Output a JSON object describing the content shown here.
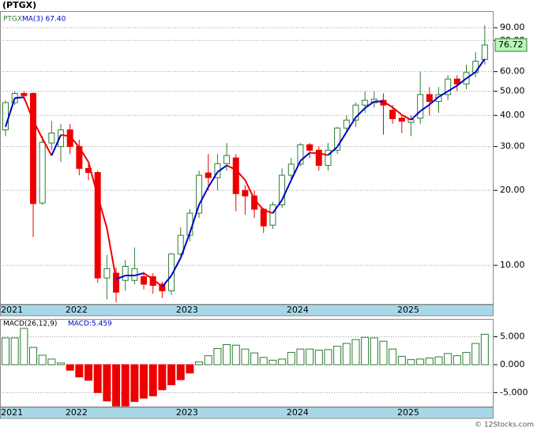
{
  "chart_data": [
    {
      "type": "candlestick",
      "title": "(PTGX)",
      "symbol": "PTGX",
      "ma_legend": "MA(3)  67.40",
      "log_scale": true,
      "grid": true,
      "categories": [
        "2021",
        null,
        null,
        null,
        null,
        null,
        null,
        "2022",
        null,
        null,
        null,
        null,
        null,
        null,
        null,
        null,
        null,
        null,
        null,
        "2023",
        null,
        null,
        null,
        null,
        null,
        null,
        null,
        null,
        null,
        null,
        null,
        "2024",
        null,
        null,
        null,
        null,
        null,
        null,
        null,
        null,
        null,
        null,
        null,
        "2025",
        null,
        null,
        null,
        null,
        null,
        null,
        null,
        null,
        null
      ],
      "open": [
        35,
        45,
        49,
        49,
        17.8,
        31,
        30,
        35,
        30,
        24.5,
        23.6,
        8.9,
        9.3,
        8.7,
        8.7,
        9.0,
        9.0,
        8.4,
        7.9,
        11.1,
        13.2,
        16.2,
        23.5,
        22.5,
        25.6,
        27,
        20,
        19,
        16.8,
        14.5,
        17.5,
        23,
        25.5,
        30.5,
        29,
        25.2,
        29,
        35.6,
        38.3,
        44,
        45,
        46,
        42,
        39,
        37.5,
        39,
        48.5,
        45.5,
        48.5,
        56,
        53.5,
        59.48,
        67
      ],
      "high": [
        46,
        50,
        50,
        49.5,
        33,
        38,
        37,
        37,
        32,
        26,
        24,
        11,
        9.8,
        10.5,
        11.8,
        9.4,
        9.3,
        8.6,
        11.2,
        14.2,
        16.8,
        24,
        28,
        28,
        31,
        28,
        21,
        20,
        17,
        18,
        24.5,
        27,
        31,
        31,
        30,
        31,
        36,
        40,
        45,
        50,
        50,
        49,
        44,
        40,
        40,
        60,
        52,
        52,
        58,
        58,
        64,
        72,
        92
      ],
      "low": [
        33,
        44,
        46,
        13,
        17.5,
        29,
        26,
        28,
        23,
        22,
        8.5,
        7.3,
        7.1,
        7.9,
        8.4,
        8.0,
        7.7,
        7.4,
        7.6,
        10.9,
        12.5,
        15.5,
        20,
        20,
        24,
        16.5,
        16,
        15.5,
        13.5,
        14,
        17,
        22,
        25,
        27,
        24,
        24,
        28,
        34,
        36,
        41,
        43,
        33.5,
        37,
        34,
        33,
        37,
        40,
        41,
        46,
        50,
        51,
        57,
        64
      ],
      "close": [
        45,
        49,
        48,
        17.7,
        31.2,
        34,
        35,
        30,
        24.5,
        23.6,
        8.9,
        9.7,
        7.8,
        9.9,
        9.7,
        8.4,
        8.3,
        7.9,
        11.1,
        13.2,
        16.2,
        23,
        22.5,
        25.6,
        27.6,
        19.4,
        19,
        16.8,
        14.4,
        17.5,
        23,
        25.5,
        30.5,
        29,
        25.2,
        29,
        35.6,
        38.3,
        44,
        46,
        46.5,
        44,
        38.8,
        37.9,
        38.5,
        48.5,
        45.5,
        48.5,
        56,
        53.5,
        59.48,
        66,
        76.72
      ],
      "ma": {
        "name": "MA(3)",
        "up_color": "#0000cc",
        "down_color": "#ee0000",
        "values": [
          36,
          47,
          47.3,
          38.2,
          32.3,
          27.6,
          33.4,
          33.0,
          29.8,
          26.0,
          19.0,
          14.1,
          8.8,
          9.1,
          9.1,
          9.3,
          8.8,
          8.2,
          9.1,
          10.7,
          13.5,
          17.5,
          20.6,
          23.7,
          25.2,
          24.2,
          22.0,
          18.4,
          16.7,
          16.2,
          18.3,
          22.0,
          26.3,
          28.3,
          28.2,
          27.7,
          29.9,
          34.3,
          39.3,
          42.8,
          45.5,
          45.5,
          43.1,
          40.2,
          38.4,
          41.6,
          44.2,
          47.5,
          50.0,
          52.7,
          56.3,
          59.7,
          67.4
        ]
      },
      "up_color": "#2e7d32",
      "down_color": "#ee0000",
      "ylim": [
        7,
        105
      ],
      "yticks": [
        {
          "value": 90,
          "label": "90.00"
        },
        {
          "value": 80,
          "label": "80.00"
        },
        {
          "value": 60,
          "label": "60.00"
        },
        {
          "value": 50,
          "label": "50.00"
        },
        {
          "value": 40,
          "label": "40.00"
        },
        {
          "value": 30,
          "label": "30.00"
        },
        {
          "value": 20,
          "label": "20.00"
        },
        {
          "value": 10,
          "label": "10.00"
        }
      ]
    },
    {
      "type": "bar",
      "title": "MACD(26,12,9)",
      "series_label": "MACD:5.459",
      "grid": true,
      "pos_color": "#2e7d32",
      "neg_color": "#ee0000",
      "values": [
        4.8,
        4.8,
        6.5,
        3.1,
        1.7,
        1.0,
        0.3,
        -1.0,
        -2.2,
        -2.8,
        -5.0,
        -6.5,
        -7.4,
        -7.4,
        -6.6,
        -6.0,
        -5.6,
        -4.5,
        -3.6,
        -2.7,
        -1.5,
        0.5,
        1.6,
        2.9,
        3.6,
        3.5,
        2.8,
        2.1,
        1.3,
        0.8,
        1.0,
        2.2,
        2.8,
        2.8,
        2.6,
        2.7,
        3.3,
        3.8,
        4.5,
        4.9,
        4.8,
        4.2,
        2.8,
        1.5,
        0.9,
        1.0,
        1.2,
        1.4,
        2.0,
        1.6,
        2.2,
        3.8,
        5.459
      ],
      "ylim": [
        -7.5,
        8.2
      ],
      "yticks": [
        {
          "value": 5,
          "label": "5.000"
        },
        {
          "value": 0,
          "label": "0.000"
        },
        {
          "value": -5,
          "label": "-5.000"
        }
      ]
    }
  ],
  "source": "© 12Stocks.com"
}
